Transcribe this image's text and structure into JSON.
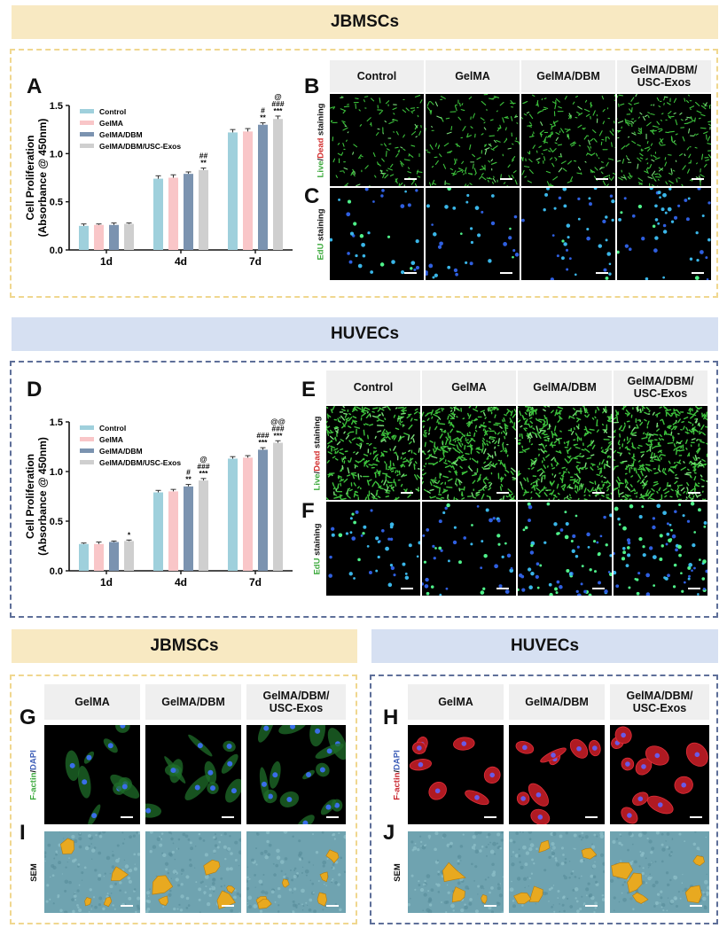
{
  "banners": {
    "top_jbmscs": "JBMSCs",
    "mid_huvecs": "HUVECs",
    "bottom_jbmscs": "JBMSCs",
    "bottom_huvecs": "HUVECs"
  },
  "panel_letters": {
    "A": "A",
    "B": "B",
    "C": "C",
    "D": "D",
    "E": "E",
    "F": "F",
    "G": "G",
    "H": "H",
    "I": "I",
    "J": "J"
  },
  "headers_four": [
    "Control",
    "GelMA",
    "GelMA/DBM",
    "GelMA/DBM/ USC-Exos"
  ],
  "headers_three": [
    "GelMA",
    "GelMA/DBM",
    "GelMA/DBM/ USC-Exos"
  ],
  "side_labels": {
    "live_part1": "Live",
    "live_sep": "/",
    "live_part2": "Dead",
    "live_part3": " staining",
    "edu_part1": "EdU",
    "edu_part2": " staining",
    "factin_part1": "F-actin",
    "factin_sep": "/",
    "factin_part2": "DAPI",
    "sem": "SEM"
  },
  "colors": {
    "control": "#9fd0dc",
    "gelma": "#f9c6c8",
    "gelma_dbm": "#7b93b0",
    "gelma_dbm_usc": "#cfcfcf",
    "live_green": "#3aa83a",
    "dead_red": "#d22c2c",
    "dapi_blue": "#3f5fb8",
    "factin_red": "#c8232b",
    "sem_cell": "#e8a920",
    "sem_bg": "#6fa3b0"
  },
  "chart_data": [
    {
      "id": "A",
      "type": "bar",
      "ylabel_line1": "Cell Proliferation",
      "ylabel_line2": "(Absorbance @ 450nm)",
      "ylim": [
        0,
        1.5
      ],
      "yticks": [
        "0.0",
        "0.5",
        "1.0",
        "1.5"
      ],
      "categories": [
        "1d",
        "4d",
        "7d"
      ],
      "series": [
        {
          "name": "Control",
          "values": [
            0.25,
            0.74,
            1.22
          ],
          "errors": [
            0.02,
            0.03,
            0.03
          ]
        },
        {
          "name": "GelMA",
          "values": [
            0.26,
            0.75,
            1.23
          ],
          "errors": [
            0.01,
            0.03,
            0.03
          ]
        },
        {
          "name": "GelMA/DBM",
          "values": [
            0.26,
            0.79,
            1.3
          ],
          "errors": [
            0.02,
            0.02,
            0.02
          ]
        },
        {
          "name": "GelMA/DBM/USC-Exos",
          "values": [
            0.27,
            0.83,
            1.36
          ],
          "errors": [
            0.01,
            0.02,
            0.03
          ]
        }
      ],
      "annotations": [
        {
          "category": 1,
          "series": 3,
          "lines": [
            "##",
            "**"
          ]
        },
        {
          "category": 2,
          "series": 2,
          "lines": [
            "#",
            "**"
          ]
        },
        {
          "category": 2,
          "series": 3,
          "lines": [
            "@",
            "###",
            "***"
          ]
        }
      ]
    },
    {
      "id": "D",
      "type": "bar",
      "ylabel_line1": "Cell Proliferation",
      "ylabel_line2": "(Absorbance @ 450nm)",
      "ylim": [
        0,
        1.5
      ],
      "yticks": [
        "0.0",
        "0.5",
        "1.0",
        "1.5"
      ],
      "categories": [
        "1d",
        "4d",
        "7d"
      ],
      "series": [
        {
          "name": "Control",
          "values": [
            0.27,
            0.79,
            1.13
          ],
          "errors": [
            0.01,
            0.02,
            0.02
          ]
        },
        {
          "name": "GelMA",
          "values": [
            0.27,
            0.8,
            1.14
          ],
          "errors": [
            0.02,
            0.02,
            0.02
          ]
        },
        {
          "name": "GelMA/DBM",
          "values": [
            0.29,
            0.85,
            1.22
          ],
          "errors": [
            0.01,
            0.02,
            0.02
          ]
        },
        {
          "name": "GelMA/DBM/USC-Exos",
          "values": [
            0.3,
            0.91,
            1.29
          ],
          "errors": [
            0.01,
            0.02,
            0.02
          ]
        }
      ],
      "annotations": [
        {
          "category": 0,
          "series": 3,
          "lines": [
            "*"
          ]
        },
        {
          "category": 1,
          "series": 2,
          "lines": [
            "#",
            "**"
          ]
        },
        {
          "category": 1,
          "series": 3,
          "lines": [
            "@",
            "###",
            "***"
          ]
        },
        {
          "category": 2,
          "series": 2,
          "lines": [
            "###",
            "***"
          ]
        },
        {
          "category": 2,
          "series": 3,
          "lines": [
            "@@",
            "###",
            "***"
          ]
        }
      ]
    }
  ]
}
